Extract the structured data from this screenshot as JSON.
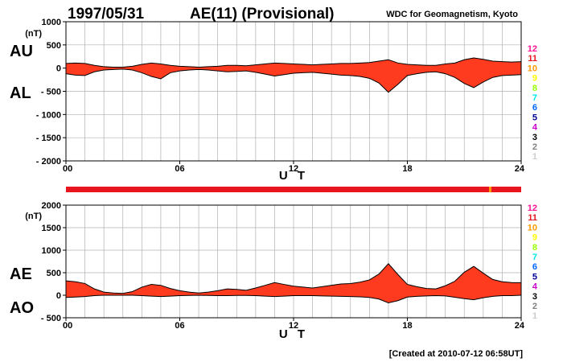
{
  "header": {
    "date": "1997/05/31",
    "index_title": "AE(11) (Provisional)",
    "organization": "WDC for Geomagnetism, Kyoto"
  },
  "footer": {
    "created": "[Created at 2010-07-12 06:58UT]"
  },
  "legend": {
    "items": [
      {
        "label": "12",
        "color": "#ff1493"
      },
      {
        "label": "11",
        "color": "#e8141e"
      },
      {
        "label": "10",
        "color": "#ff9900"
      },
      {
        "label": "9",
        "color": "#ffff00"
      },
      {
        "label": "8",
        "color": "#99ff00"
      },
      {
        "label": "7",
        "color": "#00e5e5"
      },
      {
        "label": "6",
        "color": "#0066ff"
      },
      {
        "label": "5",
        "color": "#000099"
      },
      {
        "label": "4",
        "color": "#cc00cc"
      },
      {
        "label": "3",
        "color": "#000000"
      },
      {
        "label": "2",
        "color": "#808080"
      },
      {
        "label": "1",
        "color": "#cccccc"
      }
    ]
  },
  "chart_data": [
    {
      "type": "area",
      "panel": "AU/AL",
      "side_labels": [
        "AU",
        "AL"
      ],
      "unit": "(nT)",
      "xlabel": "U T",
      "xlim": [
        0,
        24
      ],
      "x_ticks": [
        "00",
        "06",
        "12",
        "18",
        "24"
      ],
      "ylim": [
        -2000,
        1000
      ],
      "y_ticks": [
        "1000",
        "500",
        "0",
        "- 500",
        "- 1000",
        "- 1500",
        "- 2000"
      ],
      "y_tick_values": [
        1000,
        500,
        0,
        -500,
        -1000,
        -1500,
        -2000
      ],
      "grid": true,
      "fill_color": "#ff3b1f",
      "x": [
        0,
        0.5,
        1,
        1.5,
        2,
        2.5,
        3,
        3.5,
        4,
        4.5,
        5,
        5.5,
        6,
        6.5,
        7,
        7.5,
        8,
        8.5,
        9,
        9.5,
        10,
        10.5,
        11,
        11.5,
        12,
        12.5,
        13,
        13.5,
        14,
        14.5,
        15,
        15.5,
        16,
        16.5,
        17,
        17.5,
        18,
        18.5,
        19,
        19.5,
        20,
        20.5,
        21,
        21.5,
        22,
        22.5,
        23,
        23.5,
        24
      ],
      "series": [
        {
          "name": "AU",
          "values": [
            100,
            110,
            100,
            60,
            30,
            20,
            20,
            40,
            80,
            110,
            90,
            60,
            40,
            30,
            20,
            30,
            40,
            60,
            60,
            50,
            70,
            90,
            110,
            100,
            90,
            80,
            70,
            80,
            90,
            100,
            100,
            110,
            120,
            150,
            180,
            110,
            80,
            70,
            60,
            60,
            90,
            110,
            180,
            220,
            190,
            150,
            140,
            130,
            140
          ]
        },
        {
          "name": "AL",
          "values": [
            -120,
            -150,
            -160,
            -80,
            -40,
            -30,
            -20,
            -40,
            -100,
            -180,
            -230,
            -100,
            -60,
            -40,
            -30,
            -40,
            -60,
            -80,
            -70,
            -60,
            -90,
            -130,
            -170,
            -140,
            -110,
            -100,
            -90,
            -110,
            -130,
            -150,
            -160,
            -180,
            -220,
            -320,
            -520,
            -350,
            -160,
            -120,
            -90,
            -80,
            -120,
            -200,
            -330,
            -420,
            -300,
            -200,
            -160,
            -150,
            -140
          ]
        }
      ]
    },
    {
      "type": "area",
      "panel": "AE/AO",
      "side_labels": [
        "AE",
        "AO"
      ],
      "unit": "(nT)",
      "xlabel": "U T",
      "xlim": [
        0,
        24
      ],
      "x_ticks": [
        "00",
        "06",
        "12",
        "18",
        "24"
      ],
      "ylim": [
        -500,
        2000
      ],
      "y_ticks": [
        "2000",
        "1500",
        "1000",
        "500",
        "0",
        "- 500"
      ],
      "y_tick_values": [
        2000,
        1500,
        1000,
        500,
        0,
        -500
      ],
      "grid": true,
      "fill_color": "#ff3b1f",
      "x": [
        0,
        0.5,
        1,
        1.5,
        2,
        2.5,
        3,
        3.5,
        4,
        4.5,
        5,
        5.5,
        6,
        6.5,
        7,
        7.5,
        8,
        8.5,
        9,
        9.5,
        10,
        10.5,
        11,
        11.5,
        12,
        12.5,
        13,
        13.5,
        14,
        14.5,
        15,
        15.5,
        16,
        16.5,
        17,
        17.5,
        18,
        18.5,
        19,
        19.5,
        20,
        20.5,
        21,
        21.5,
        22,
        22.5,
        23,
        23.5,
        24
      ],
      "series": [
        {
          "name": "AE",
          "values": [
            320,
            300,
            260,
            140,
            70,
            50,
            40,
            80,
            180,
            240,
            220,
            150,
            100,
            70,
            50,
            70,
            100,
            140,
            130,
            110,
            160,
            220,
            280,
            240,
            200,
            180,
            160,
            190,
            220,
            250,
            260,
            290,
            340,
            470,
            700,
            460,
            240,
            190,
            150,
            140,
            210,
            310,
            510,
            640,
            490,
            350,
            300,
            280,
            280
          ]
        },
        {
          "name": "AO",
          "values": [
            -50,
            -40,
            -30,
            -10,
            0,
            0,
            0,
            0,
            -10,
            -20,
            -30,
            -20,
            -10,
            -5,
            0,
            -5,
            -10,
            -10,
            -5,
            -5,
            -10,
            -20,
            -30,
            -20,
            -10,
            -10,
            -10,
            -15,
            -20,
            -25,
            -30,
            -35,
            -50,
            -85,
            -170,
            -120,
            -40,
            -25,
            -15,
            -10,
            -15,
            -45,
            -75,
            -100,
            -55,
            -25,
            -10,
            -10,
            0
          ]
        }
      ]
    }
  ]
}
